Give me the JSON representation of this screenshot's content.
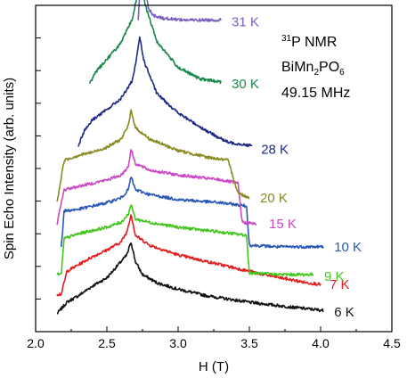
{
  "chart_data": {
    "type": "line",
    "title": "",
    "xlabel": "H (T)",
    "ylabel": "Spin Echo Intensity (arb. units)",
    "xlim": [
      2.0,
      4.5
    ],
    "ylim": [
      0,
      10
    ],
    "x_ticks": [
      2.0,
      2.5,
      3.0,
      3.5,
      4.0,
      4.5
    ],
    "x_tick_labels": [
      "2.0",
      "2.5",
      "3.0",
      "3.5",
      "4.0",
      "4.5"
    ],
    "grid": false,
    "annotation": {
      "line1_sup": "31",
      "line1_main": "P NMR",
      "line2_a": "BiMn",
      "line2_sub1": "2",
      "line2_b": "PO",
      "line2_sub2": "6",
      "line3": "49.15 MHz"
    },
    "series": [
      {
        "name": "6 K",
        "color": "#111111",
        "offset": 0.55,
        "x": [
          2.15,
          2.22,
          2.3,
          2.4,
          2.5,
          2.58,
          2.64,
          2.67,
          2.7,
          2.75,
          2.85,
          3.0,
          3.2,
          3.5,
          3.8,
          4.02
        ],
        "y": [
          0.0,
          0.35,
          0.55,
          0.85,
          1.1,
          1.5,
          1.8,
          2.2,
          1.6,
          1.2,
          0.95,
          0.75,
          0.55,
          0.35,
          0.2,
          0.1
        ]
      },
      {
        "name": "7 K",
        "color": "#e01e1e",
        "offset": 1.15,
        "x": [
          2.15,
          2.18,
          2.22,
          2.3,
          2.4,
          2.5,
          2.6,
          2.64,
          2.67,
          2.7,
          2.8,
          3.0,
          3.3,
          3.6,
          3.9,
          4.0
        ],
        "y": [
          0.0,
          0.0,
          0.7,
          0.9,
          1.15,
          1.35,
          1.6,
          1.9,
          2.45,
          1.8,
          1.5,
          1.2,
          0.9,
          0.6,
          0.35,
          0.3
        ]
      },
      {
        "name": "9 K",
        "color": "#44c51f",
        "offset": 1.75,
        "x": [
          2.15,
          2.18,
          2.2,
          2.3,
          2.4,
          2.5,
          2.6,
          2.65,
          2.67,
          2.7,
          2.8,
          3.0,
          3.3,
          3.48,
          3.5,
          3.7,
          3.95
        ],
        "y": [
          0.0,
          0.0,
          1.1,
          1.25,
          1.35,
          1.45,
          1.6,
          1.85,
          2.15,
          1.7,
          1.6,
          1.45,
          1.3,
          1.2,
          0.05,
          0.0,
          0.0
        ]
      },
      {
        "name": "10 K",
        "color": "#2b57b7",
        "offset": 2.6,
        "x": [
          2.18,
          2.2,
          2.3,
          2.4,
          2.5,
          2.6,
          2.65,
          2.67,
          2.7,
          2.8,
          3.0,
          3.3,
          3.48,
          3.5,
          3.7,
          4.02
        ],
        "y": [
          0.0,
          1.1,
          1.15,
          1.25,
          1.35,
          1.5,
          1.75,
          2.15,
          1.75,
          1.6,
          1.45,
          1.35,
          1.25,
          0.05,
          0.0,
          0.0
        ]
      },
      {
        "name": "15 K",
        "color": "#cb49c4",
        "offset": 3.3,
        "x": [
          2.15,
          2.2,
          2.3,
          2.4,
          2.5,
          2.6,
          2.65,
          2.67,
          2.7,
          2.8,
          3.0,
          3.3,
          3.42,
          3.45,
          3.55
        ],
        "y": [
          0.0,
          1.05,
          1.15,
          1.25,
          1.35,
          1.5,
          1.75,
          2.3,
          1.85,
          1.65,
          1.5,
          1.35,
          1.25,
          0.05,
          0.0
        ]
      },
      {
        "name": "20 K",
        "color": "#8a8a22",
        "offset": 3.95,
        "x": [
          2.15,
          2.2,
          2.3,
          2.4,
          2.5,
          2.6,
          2.65,
          2.67,
          2.7,
          2.8,
          3.0,
          3.2,
          3.35,
          3.42,
          3.5
        ],
        "y": [
          0.0,
          1.3,
          1.45,
          1.55,
          1.7,
          1.95,
          2.35,
          2.85,
          2.3,
          1.95,
          1.6,
          1.4,
          1.3,
          0.3,
          0.15
        ]
      },
      {
        "name": "28 K",
        "color": "#1e2a85",
        "offset": 5.7,
        "x": [
          2.3,
          2.34,
          2.4,
          2.5,
          2.6,
          2.68,
          2.71,
          2.73,
          2.76,
          2.85,
          3.0,
          3.2,
          3.35,
          3.52
        ],
        "y": [
          0.0,
          0.45,
          0.8,
          1.1,
          1.45,
          2.0,
          2.7,
          3.35,
          2.6,
          1.6,
          1.0,
          0.45,
          0.1,
          0.0
        ]
      },
      {
        "name": "30 K",
        "color": "#18884a",
        "offset": 7.6,
        "x": [
          2.38,
          2.42,
          2.5,
          2.6,
          2.68,
          2.72,
          2.74,
          2.77,
          2.85,
          3.0,
          3.15,
          3.3
        ],
        "y": [
          0.0,
          0.35,
          0.75,
          1.25,
          2.0,
          2.85,
          3.25,
          2.4,
          1.3,
          0.5,
          0.15,
          0.05
        ]
      },
      {
        "name": "31 K",
        "color": "#7b5cc0",
        "offset": 9.55,
        "x": [
          2.72,
          2.73,
          2.74,
          2.75,
          2.76,
          2.77,
          2.79,
          2.82,
          2.9,
          3.05,
          3.3
        ],
        "y": [
          0.0,
          0.8,
          2.5,
          2.8,
          2.1,
          1.1,
          0.4,
          0.15,
          0.05,
          0.0,
          0.0
        ]
      }
    ],
    "label_positions_hint": "each series label placed right of the trace end"
  }
}
